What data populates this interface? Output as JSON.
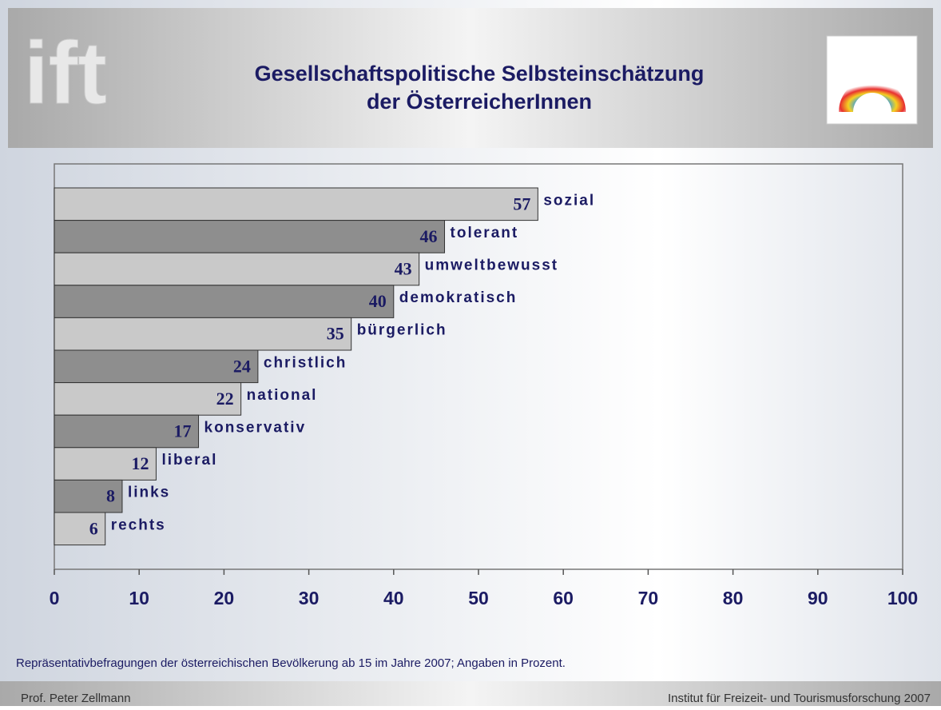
{
  "chart_data": {
    "type": "barh",
    "title": [
      "Gesellschaftspolitische Selbsteinschätzung",
      "der ÖsterreicherInnen"
    ],
    "logo_text": "ift",
    "categories": [
      "sozial",
      "tolerant",
      "umweltbewusst",
      "demokratisch",
      "bürgerlich",
      "christlich",
      "national",
      "konservativ",
      "liberal",
      "links",
      "rechts"
    ],
    "values": [
      57,
      46,
      43,
      40,
      35,
      24,
      22,
      17,
      12,
      8,
      6
    ],
    "colors": [
      "#c9c9c9",
      "#8e8e8e"
    ],
    "xlim": [
      0,
      100
    ],
    "xticks": [
      0,
      10,
      20,
      30,
      40,
      50,
      60,
      70,
      80,
      90,
      100
    ],
    "grid": false,
    "footnote": "Repräsentativbefragungen der österreichischen Bevölkerung ab 15 im Jahre 2007; Angaben in Prozent.",
    "footer_left": "Prof. Peter Zellmann",
    "footer_right": "Institut für Freizeit- und Tourismusforschung 2007"
  }
}
